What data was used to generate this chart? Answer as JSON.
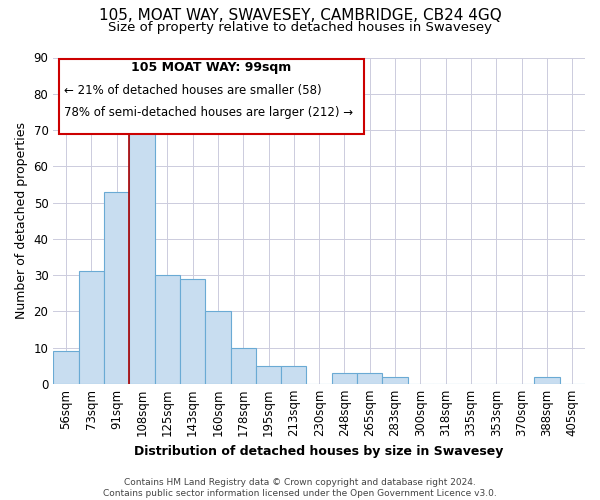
{
  "title": "105, MOAT WAY, SWAVESEY, CAMBRIDGE, CB24 4GQ",
  "subtitle": "Size of property relative to detached houses in Swavesey",
  "xlabel": "Distribution of detached houses by size in Swavesey",
  "ylabel": "Number of detached properties",
  "bar_labels": [
    "56sqm",
    "73sqm",
    "91sqm",
    "108sqm",
    "125sqm",
    "143sqm",
    "160sqm",
    "178sqm",
    "195sqm",
    "213sqm",
    "230sqm",
    "248sqm",
    "265sqm",
    "283sqm",
    "300sqm",
    "318sqm",
    "335sqm",
    "353sqm",
    "370sqm",
    "388sqm",
    "405sqm"
  ],
  "bar_values": [
    9,
    31,
    53,
    70,
    30,
    29,
    20,
    10,
    5,
    5,
    0,
    3,
    3,
    2,
    0,
    0,
    0,
    0,
    0,
    2,
    0
  ],
  "bar_color": "#c8ddf0",
  "bar_edge_color": "#6aaad4",
  "vline_color": "#aa0000",
  "ylim": [
    0,
    90
  ],
  "yticks": [
    0,
    10,
    20,
    30,
    40,
    50,
    60,
    70,
    80,
    90
  ],
  "annotation_title": "105 MOAT WAY: 99sqm",
  "annotation_line1": "← 21% of detached houses are smaller (58)",
  "annotation_line2": "78% of semi-detached houses are larger (212) →",
  "annotation_box_color": "#ffffff",
  "annotation_box_edge": "#cc0000",
  "footer_line1": "Contains HM Land Registry data © Crown copyright and database right 2024.",
  "footer_line2": "Contains public sector information licensed under the Open Government Licence v3.0.",
  "bg_color": "#ffffff",
  "grid_color": "#ccccdd",
  "title_fontsize": 11,
  "subtitle_fontsize": 9.5,
  "axis_label_fontsize": 9,
  "tick_fontsize": 8.5,
  "footer_fontsize": 6.5
}
